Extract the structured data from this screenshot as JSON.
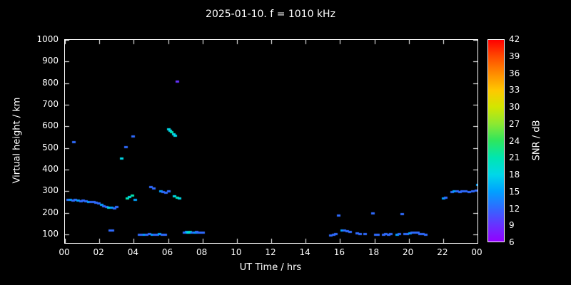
{
  "chart_data": {
    "type": "scatter",
    "title": "2025-01-10. f = 1010 kHz",
    "xlabel": "UT Time / hrs",
    "ylabel": "Virtual height / km",
    "background": "#000000",
    "grid": false,
    "xlim": [
      0,
      24
    ],
    "ylim": [
      60,
      1000
    ],
    "x_ticks": [
      0,
      2,
      4,
      6,
      8,
      10,
      12,
      14,
      16,
      18,
      20,
      22,
      24
    ],
    "x_tick_labels": [
      "00",
      "02",
      "04",
      "06",
      "08",
      "10",
      "12",
      "14",
      "16",
      "18",
      "20",
      "22",
      "00"
    ],
    "y_ticks": [
      100,
      200,
      300,
      400,
      500,
      600,
      700,
      800,
      900,
      1000
    ],
    "y_tick_labels": [
      "100",
      "200",
      "300",
      "400",
      "500",
      "600",
      "700",
      "800",
      "900",
      "1000"
    ],
    "colorbar": {
      "label": "SNR / dB",
      "min": 6,
      "max": 42,
      "ticks": [
        6,
        9,
        12,
        15,
        18,
        21,
        24,
        27,
        30,
        33,
        36,
        39,
        42
      ],
      "tick_labels": [
        "6",
        "9",
        "12",
        "15",
        "18",
        "21",
        "24",
        "27",
        "30",
        "33",
        "36",
        "39",
        "42"
      ],
      "levels": [
        6,
        9,
        12,
        15,
        18,
        21,
        24,
        27,
        30,
        33,
        36,
        39,
        42
      ],
      "colors": [
        "#9400ff",
        "#6633ff",
        "#2f6bff",
        "#00a2ff",
        "#00d8e8",
        "#00e6b0",
        "#2ee65e",
        "#8ce832",
        "#d2e600",
        "#ffc800",
        "#ff8c00",
        "#ff4b00",
        "#ff0000"
      ]
    },
    "points": [
      [
        0.15,
        260,
        12
      ],
      [
        0.3,
        262,
        15
      ],
      [
        0.45,
        258,
        12
      ],
      [
        0.6,
        260,
        12
      ],
      [
        0.75,
        258,
        15
      ],
      [
        0.9,
        256,
        12
      ],
      [
        1.05,
        258,
        12
      ],
      [
        1.2,
        255,
        12
      ],
      [
        1.35,
        252,
        15
      ],
      [
        1.5,
        250,
        12
      ],
      [
        1.65,
        250,
        12
      ],
      [
        1.8,
        248,
        12
      ],
      [
        1.95,
        245,
        12
      ],
      [
        2.1,
        238,
        15
      ],
      [
        2.25,
        232,
        12
      ],
      [
        2.4,
        228,
        12
      ],
      [
        2.55,
        226,
        18
      ],
      [
        2.7,
        224,
        15
      ],
      [
        2.85,
        222,
        12
      ],
      [
        3.0,
        228,
        12
      ],
      [
        0.5,
        530,
        12
      ],
      [
        2.6,
        120,
        12
      ],
      [
        2.75,
        118,
        12
      ],
      [
        3.3,
        452,
        18
      ],
      [
        3.55,
        505,
        12
      ],
      [
        3.95,
        555,
        12
      ],
      [
        3.6,
        268,
        21
      ],
      [
        3.75,
        275,
        18
      ],
      [
        3.9,
        282,
        21
      ],
      [
        4.05,
        262,
        15
      ],
      [
        4.3,
        100,
        12
      ],
      [
        4.45,
        98,
        12
      ],
      [
        4.6,
        100,
        15
      ],
      [
        4.75,
        100,
        12
      ],
      [
        4.9,
        102,
        12
      ],
      [
        5.05,
        100,
        15
      ],
      [
        5.2,
        98,
        12
      ],
      [
        5.35,
        100,
        12
      ],
      [
        5.5,
        102,
        15
      ],
      [
        5.65,
        100,
        12
      ],
      [
        5.8,
        98,
        12
      ],
      [
        5.0,
        322,
        12
      ],
      [
        5.15,
        315,
        12
      ],
      [
        5.55,
        302,
        15
      ],
      [
        5.7,
        298,
        12
      ],
      [
        5.85,
        295,
        12
      ],
      [
        6.0,
        300,
        12
      ],
      [
        6.0,
        588,
        18
      ],
      [
        6.1,
        582,
        18
      ],
      [
        6.2,
        575,
        21
      ],
      [
        6.3,
        566,
        18
      ],
      [
        6.4,
        558,
        18
      ],
      [
        6.5,
        810,
        9
      ],
      [
        6.35,
        278,
        18
      ],
      [
        6.5,
        272,
        21
      ],
      [
        6.65,
        268,
        18
      ],
      [
        6.95,
        110,
        12
      ],
      [
        7.05,
        112,
        15
      ],
      [
        7.15,
        110,
        18
      ],
      [
        7.25,
        112,
        21
      ],
      [
        7.35,
        110,
        15
      ],
      [
        7.45,
        108,
        12
      ],
      [
        7.55,
        110,
        15
      ],
      [
        7.65,
        112,
        12
      ],
      [
        7.75,
        110,
        12
      ],
      [
        7.9,
        108,
        12
      ],
      [
        8.0,
        110,
        12
      ],
      [
        15.45,
        95,
        12
      ],
      [
        15.6,
        100,
        12
      ],
      [
        15.75,
        103,
        12
      ],
      [
        15.9,
        190,
        12
      ],
      [
        16.1,
        120,
        15
      ],
      [
        16.25,
        118,
        12
      ],
      [
        16.4,
        116,
        12
      ],
      [
        16.55,
        114,
        12
      ],
      [
        17.0,
        106,
        12
      ],
      [
        17.15,
        104,
        12
      ],
      [
        17.45,
        102,
        12
      ],
      [
        17.9,
        200,
        12
      ],
      [
        18.05,
        100,
        12
      ],
      [
        18.2,
        98,
        12
      ],
      [
        18.5,
        100,
        12
      ],
      [
        18.65,
        102,
        12
      ],
      [
        18.8,
        100,
        12
      ],
      [
        18.95,
        102,
        12
      ],
      [
        19.3,
        100,
        15
      ],
      [
        19.45,
        102,
        12
      ],
      [
        19.6,
        195,
        12
      ],
      [
        19.75,
        102,
        12
      ],
      [
        19.9,
        104,
        12
      ],
      [
        20.05,
        106,
        15
      ],
      [
        20.2,
        108,
        12
      ],
      [
        20.35,
        110,
        12
      ],
      [
        20.5,
        108,
        12
      ],
      [
        20.65,
        104,
        12
      ],
      [
        20.8,
        102,
        12
      ],
      [
        20.95,
        100,
        12
      ],
      [
        22.0,
        268,
        15
      ],
      [
        22.15,
        272,
        12
      ],
      [
        22.5,
        298,
        12
      ],
      [
        22.65,
        302,
        15
      ],
      [
        22.8,
        300,
        12
      ],
      [
        22.95,
        298,
        12
      ],
      [
        23.1,
        302,
        12
      ],
      [
        23.3,
        300,
        12
      ],
      [
        23.5,
        298,
        12
      ],
      [
        23.7,
        302,
        12
      ],
      [
        23.9,
        305,
        12
      ],
      [
        24.0,
        332,
        15
      ]
    ]
  }
}
